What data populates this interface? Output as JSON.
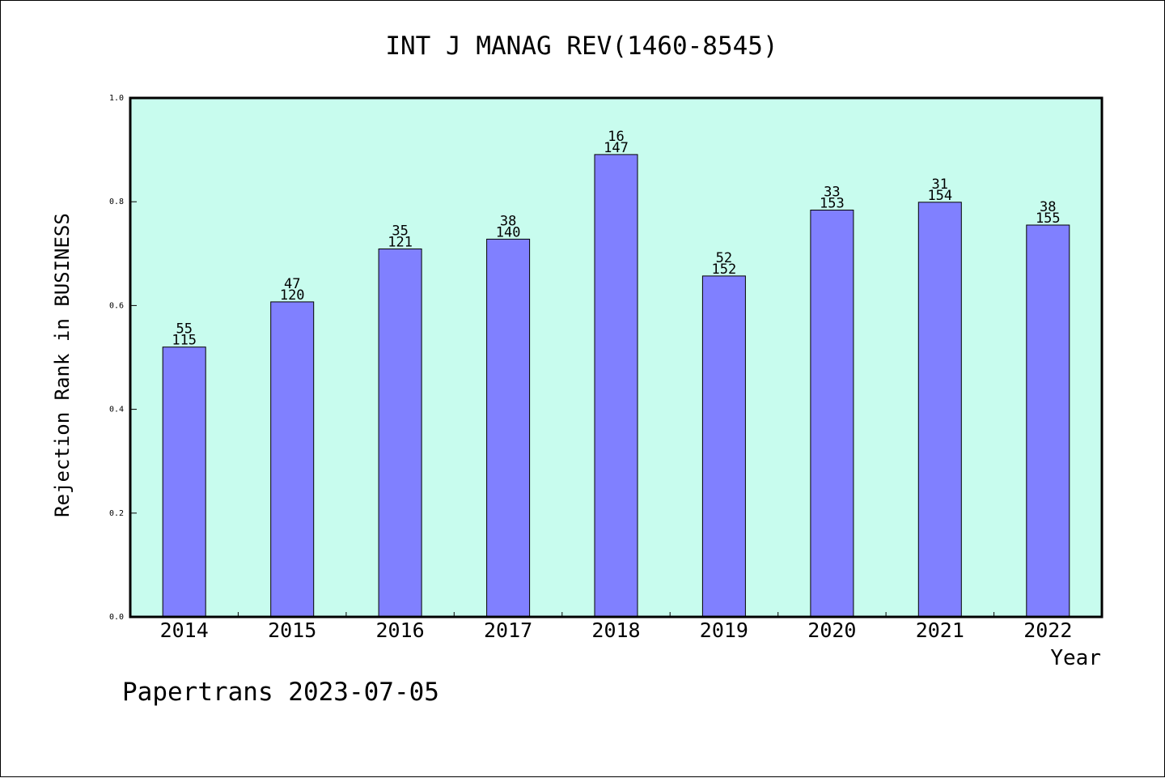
{
  "chart_data": {
    "type": "bar",
    "title": "INT J MANAG REV(1460-8545)",
    "xlabel": "Year",
    "ylabel": "Rejection Rank in BUSINESS",
    "ylim": [
      0,
      1.0
    ],
    "yticks": [
      "0.0",
      "0.2",
      "0.4",
      "0.6",
      "0.8",
      "1.0"
    ],
    "categories": [
      "2014",
      "2015",
      "2016",
      "2017",
      "2018",
      "2019",
      "2020",
      "2021",
      "2022"
    ],
    "values": [
      0.52,
      0.607,
      0.709,
      0.728,
      0.891,
      0.657,
      0.784,
      0.799,
      0.755
    ],
    "label_top": [
      "55",
      "47",
      "35",
      "38",
      "16",
      "52",
      "33",
      "31",
      "38"
    ],
    "label_bottom": [
      "115",
      "120",
      "121",
      "140",
      "147",
      "152",
      "153",
      "154",
      "155"
    ],
    "grid": false,
    "colors": {
      "plot_background": "#c8fcee",
      "bar_fill": "#8080ff",
      "bar_stroke": "#000000"
    }
  },
  "footer": "Papertrans 2023-07-05"
}
